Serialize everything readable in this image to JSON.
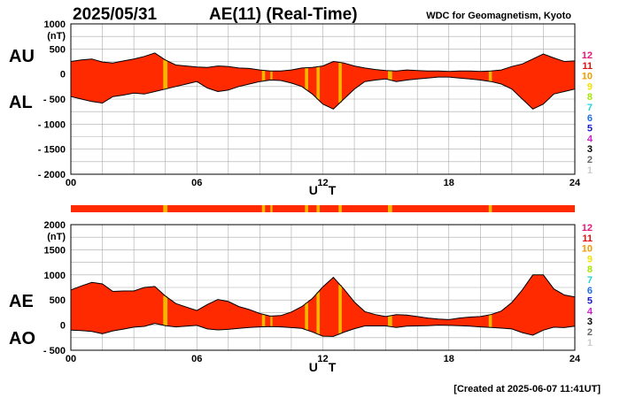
{
  "header": {
    "date": "2025/05/31",
    "title": "AE(11) (Real-Time)",
    "org": "WDC for Geomagnetism, Kyoto"
  },
  "footer": {
    "created": "[Created at 2025-06-07 11:41UT]"
  },
  "legend": {
    "items": [
      {
        "label": "12",
        "color": "#e6177a"
      },
      {
        "label": "11",
        "color": "#e01010"
      },
      {
        "label": "10",
        "color": "#f29a00"
      },
      {
        "label": "9",
        "color": "#f2e200"
      },
      {
        "label": "8",
        "color": "#a6e600"
      },
      {
        "label": "7",
        "color": "#22d3d3"
      },
      {
        "label": "6",
        "color": "#1e6ee6"
      },
      {
        "label": "5",
        "color": "#1a1acc"
      },
      {
        "label": "4",
        "color": "#cc22cc"
      },
      {
        "label": "3",
        "color": "#000000"
      },
      {
        "label": "2",
        "color": "#666666"
      },
      {
        "label": "1",
        "color": "#cccccc"
      }
    ]
  },
  "colors": {
    "fill_main": "#ff2a00",
    "fill_alt": "#f2b800",
    "line": "#000000"
  },
  "chart_data": [
    {
      "type": "area",
      "xlabel": "U T",
      "ylabel": "(nT)",
      "series_labels": [
        "AU",
        "AL"
      ],
      "x_ticks": [
        "00",
        "06",
        "12",
        "18",
        "24"
      ],
      "y_ticks": [
        "1000",
        "500",
        "0",
        "- 500",
        "- 1000",
        "- 1500",
        "- 2000"
      ],
      "xlim": [
        0,
        24
      ],
      "ylim": [
        -2000,
        1000
      ],
      "grid": true,
      "series": [
        {
          "name": "AU",
          "x": [
            0,
            0.5,
            1,
            1.5,
            2,
            2.5,
            3,
            3.5,
            4,
            4.5,
            5,
            5.5,
            6,
            6.5,
            7,
            7.5,
            8,
            8.5,
            9,
            9.5,
            10,
            10.5,
            11,
            11.5,
            12,
            12.5,
            13,
            13.5,
            14,
            14.5,
            15,
            15.5,
            16,
            16.5,
            17,
            17.5,
            18,
            18.5,
            19,
            19.5,
            20,
            20.5,
            21,
            21.5,
            22,
            22.5,
            23,
            23.5,
            24
          ],
          "values": [
            250,
            280,
            300,
            240,
            220,
            260,
            300,
            350,
            420,
            280,
            180,
            160,
            140,
            130,
            160,
            150,
            120,
            110,
            80,
            60,
            60,
            80,
            120,
            130,
            160,
            250,
            220,
            160,
            120,
            90,
            70,
            60,
            80,
            70,
            60,
            60,
            50,
            60,
            60,
            50,
            60,
            80,
            150,
            200,
            300,
            400,
            320,
            250,
            260
          ]
        },
        {
          "name": "AL",
          "x": [
            0,
            0.5,
            1,
            1.5,
            2,
            2.5,
            3,
            3.5,
            4,
            4.5,
            5,
            5.5,
            6,
            6.5,
            7,
            7.5,
            8,
            8.5,
            9,
            9.5,
            10,
            10.5,
            11,
            11.5,
            12,
            12.5,
            13,
            13.5,
            14,
            14.5,
            15,
            15.5,
            16,
            16.5,
            17,
            17.5,
            18,
            18.5,
            19,
            19.5,
            20,
            20.5,
            21,
            21.5,
            22,
            22.5,
            23,
            23.5,
            24
          ],
          "values": [
            -450,
            -500,
            -550,
            -580,
            -450,
            -420,
            -380,
            -400,
            -350,
            -300,
            -250,
            -200,
            -150,
            -280,
            -350,
            -320,
            -250,
            -200,
            -150,
            -120,
            -130,
            -180,
            -250,
            -400,
            -600,
            -700,
            -500,
            -300,
            -150,
            -120,
            -100,
            -150,
            -120,
            -100,
            -80,
            -60,
            -60,
            -80,
            -100,
            -120,
            -150,
            -200,
            -300,
            -500,
            -700,
            -600,
            -400,
            -350,
            -300
          ]
        }
      ]
    },
    {
      "type": "area",
      "xlabel": "U T",
      "ylabel": "(nT)",
      "series_labels": [
        "AE",
        "AO"
      ],
      "x_ticks": [
        "00",
        "06",
        "12",
        "18",
        "24"
      ],
      "y_ticks": [
        "2000",
        "1500",
        "1000",
        "500",
        "0",
        "- 500"
      ],
      "xlim": [
        0,
        24
      ],
      "ylim": [
        -500,
        2000
      ],
      "grid": true,
      "series": [
        {
          "name": "AE",
          "x": [
            0,
            0.5,
            1,
            1.5,
            2,
            2.5,
            3,
            3.5,
            4,
            4.5,
            5,
            5.5,
            6,
            6.5,
            7,
            7.5,
            8,
            8.5,
            9,
            9.5,
            10,
            10.5,
            11,
            11.5,
            12,
            12.5,
            13,
            13.5,
            14,
            14.5,
            15,
            15.5,
            16,
            16.5,
            17,
            17.5,
            18,
            18.5,
            19,
            19.5,
            20,
            20.5,
            21,
            21.5,
            22,
            22.5,
            23,
            23.5,
            24
          ],
          "values": [
            700,
            780,
            850,
            820,
            670,
            680,
            680,
            750,
            770,
            580,
            430,
            360,
            290,
            410,
            510,
            470,
            370,
            310,
            230,
            180,
            190,
            260,
            370,
            530,
            760,
            950,
            720,
            460,
            270,
            210,
            170,
            210,
            200,
            170,
            140,
            120,
            110,
            140,
            160,
            170,
            210,
            280,
            450,
            700,
            1000,
            1000,
            720,
            600,
            560
          ]
        },
        {
          "name": "AO",
          "x": [
            0,
            0.5,
            1,
            1.5,
            2,
            2.5,
            3,
            3.5,
            4,
            4.5,
            5,
            5.5,
            6,
            6.5,
            7,
            7.5,
            8,
            8.5,
            9,
            9.5,
            10,
            10.5,
            11,
            11.5,
            12,
            12.5,
            13,
            13.5,
            14,
            14.5,
            15,
            15.5,
            16,
            16.5,
            17,
            17.5,
            18,
            18.5,
            19,
            19.5,
            20,
            20.5,
            21,
            21.5,
            22,
            22.5,
            23,
            23.5,
            24
          ],
          "values": [
            -100,
            -110,
            -125,
            -170,
            -115,
            -80,
            -40,
            -25,
            35,
            -10,
            -35,
            -20,
            -5,
            -75,
            -95,
            -85,
            -65,
            -45,
            -35,
            -30,
            -35,
            -50,
            -65,
            -135,
            -220,
            -225,
            -140,
            -70,
            -15,
            -15,
            -15,
            -45,
            -20,
            -15,
            -10,
            0,
            -5,
            -10,
            -20,
            -35,
            -45,
            -60,
            -75,
            -150,
            -200,
            -100,
            -40,
            -50,
            -20
          ]
        }
      ],
      "quality_bar": {
        "type": "bar",
        "segments_hours": [
          [
            4.4,
            4.6
          ],
          [
            9.1,
            9.25
          ],
          [
            9.5,
            9.6
          ],
          [
            11.15,
            11.3
          ],
          [
            11.7,
            11.85
          ],
          [
            12.75,
            12.9
          ],
          [
            15.1,
            15.3
          ],
          [
            19.9,
            20.05
          ]
        ]
      }
    }
  ]
}
